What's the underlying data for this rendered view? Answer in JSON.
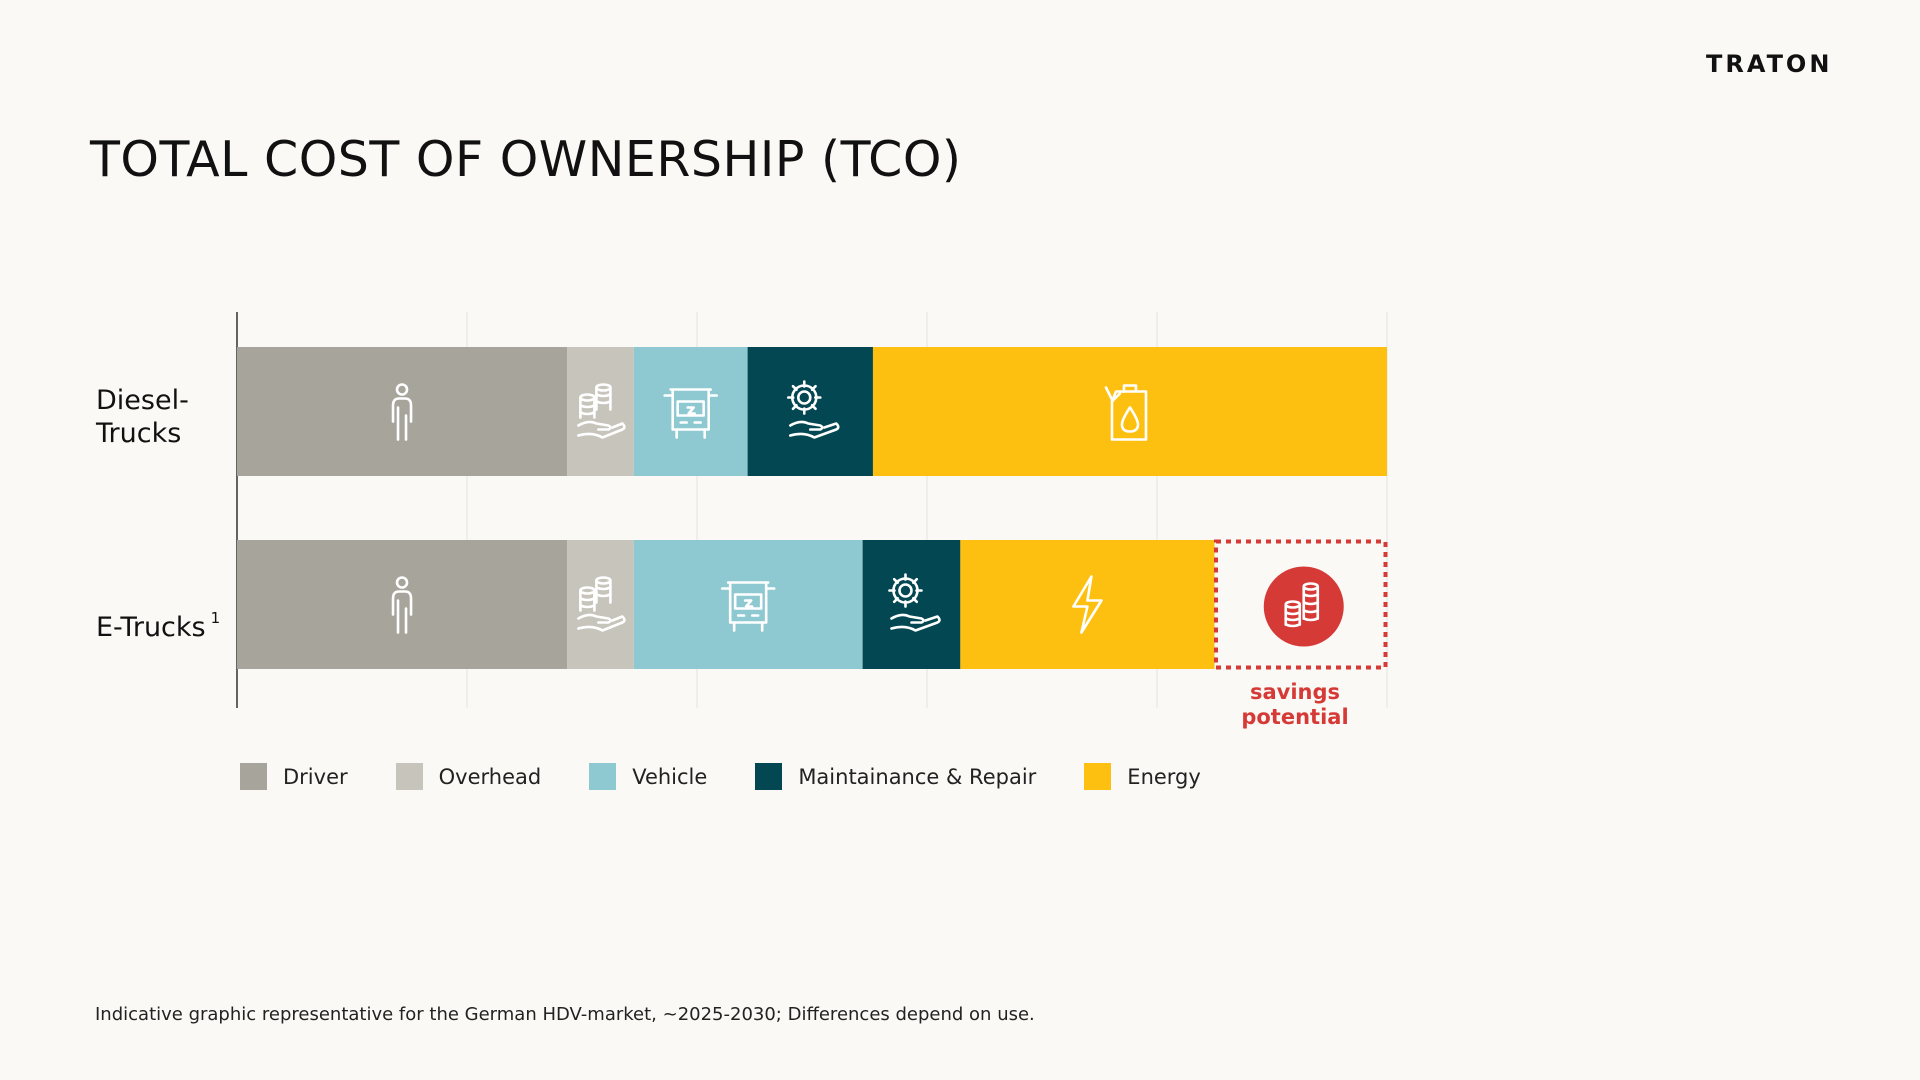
{
  "brand": {
    "logo_text": "TRATON"
  },
  "title": "TOTAL COST OF OWNERSHIP (TCO)",
  "colors": {
    "Driver": "#a7a49c",
    "Overhead": "#c7c4bc",
    "Vehicle": "#8ec8d1",
    "Maintainance & Repair": "#034752",
    "Energy": "#fdc010",
    "savings": "#d63a36"
  },
  "chart_data": {
    "type": "bar",
    "orientation": "horizontal",
    "stacked": true,
    "title": "",
    "xlabel": "",
    "ylabel": "",
    "xlim": [
      0,
      100
    ],
    "grid": true,
    "legend_position": "bottom",
    "categories": [
      "Diesel-Trucks",
      "E-Trucks"
    ],
    "category_labels": [
      {
        "text": "Diesel-\nTrucks",
        "footnote": ""
      },
      {
        "text": "E-Trucks",
        "footnote": "1"
      }
    ],
    "series": [
      {
        "name": "Driver",
        "values": [
          28.7,
          28.7
        ],
        "icon": "person-icon"
      },
      {
        "name": "Overhead",
        "values": [
          5.8,
          5.8
        ],
        "icon": "coins-hand-icon"
      },
      {
        "name": "Vehicle",
        "values": [
          9.9,
          19.9
        ],
        "icon": "truck-front-icon"
      },
      {
        "name": "Maintainance & Repair",
        "values": [
          10.9,
          8.5
        ],
        "icon": "gear-hand-icon"
      },
      {
        "name": "Energy",
        "values": [
          44.7,
          22.1
        ],
        "icon": "energy-icon"
      }
    ],
    "annotations": [
      {
        "category": "E-Trucks",
        "type": "savings",
        "value": 15.0,
        "label": "savings potential",
        "icon": "coins-circle-icon"
      }
    ]
  },
  "footnote": "Indicative graphic representative for the German HDV-market, ~2025-2030; Differences depend on use."
}
